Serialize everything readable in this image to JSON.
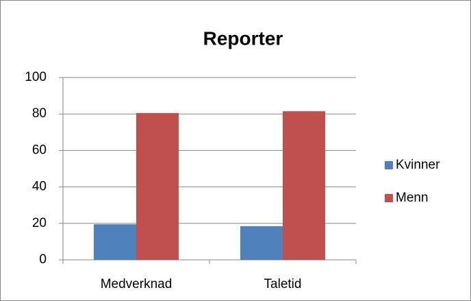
{
  "chart_data": {
    "type": "bar",
    "title": "Reporter",
    "categories": [
      "Medverknad",
      "Taletid"
    ],
    "series": [
      {
        "name": "Kvinner",
        "color": "#4f81bd",
        "values": [
          19.5,
          18.5
        ]
      },
      {
        "name": "Menn",
        "color": "#c0504d",
        "values": [
          80.5,
          81.5
        ]
      }
    ],
    "ylim": [
      0,
      100
    ],
    "yticks": [
      0,
      20,
      40,
      60,
      80,
      100
    ],
    "grid": true,
    "legend": "right"
  }
}
